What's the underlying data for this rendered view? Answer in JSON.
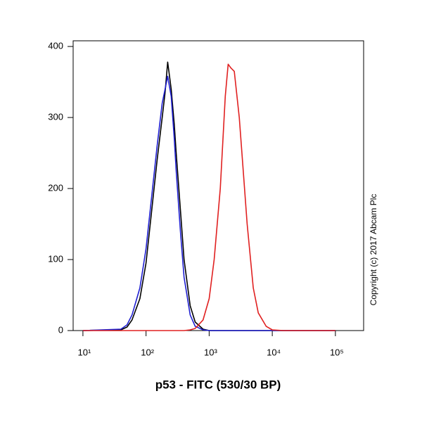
{
  "chart_data": {
    "type": "line",
    "x_label": "p53 - FITC (530/30 BP)",
    "annotation": "Copyright (c) 2017 Abcam Plc",
    "xscale": "log",
    "xlim": [
      7,
      280000
    ],
    "xticks": [
      {
        "value": 10,
        "label": "10¹"
      },
      {
        "value": 100,
        "label": "10²"
      },
      {
        "value": 1000,
        "label": "10³"
      },
      {
        "value": 10000,
        "label": "10⁴"
      },
      {
        "value": 100000,
        "label": "10⁵"
      }
    ],
    "ylim": [
      0,
      408
    ],
    "yticks": [
      0,
      100,
      200,
      300,
      400
    ],
    "x": [
      10,
      40,
      50,
      60,
      80,
      100,
      120,
      150,
      180,
      200,
      220,
      250,
      280,
      300,
      350,
      400,
      500,
      600,
      800,
      1000,
      1200,
      1500,
      1800,
      2000,
      2200,
      2500,
      3000,
      3500,
      4000,
      5000,
      6000,
      8000,
      10000,
      15000,
      100000
    ],
    "series": [
      {
        "color": "#000000",
        "values": [
          0,
          1,
          5,
          15,
          45,
          95,
          160,
          240,
          300,
          335,
          378,
          340,
          290,
          250,
          170,
          100,
          35,
          12,
          2,
          0,
          0,
          0,
          0,
          0,
          0,
          0,
          0,
          0,
          0,
          0,
          0,
          0,
          0,
          0,
          0
        ]
      },
      {
        "color": "#1f1fd0",
        "values": [
          0,
          2,
          8,
          22,
          60,
          115,
          180,
          260,
          320,
          340,
          358,
          330,
          270,
          225,
          140,
          75,
          22,
          6,
          1,
          0,
          0,
          0,
          0,
          0,
          0,
          0,
          0,
          0,
          0,
          0,
          0,
          0,
          0,
          0,
          0
        ]
      },
      {
        "color": "#e02020",
        "values": [
          0,
          0,
          0,
          0,
          0,
          0,
          0,
          0,
          0,
          0,
          0,
          0,
          0,
          0,
          0,
          0,
          1,
          3,
          15,
          45,
          100,
          200,
          330,
          375,
          370,
          365,
          300,
          220,
          150,
          60,
          25,
          6,
          1,
          0,
          0
        ]
      }
    ]
  }
}
